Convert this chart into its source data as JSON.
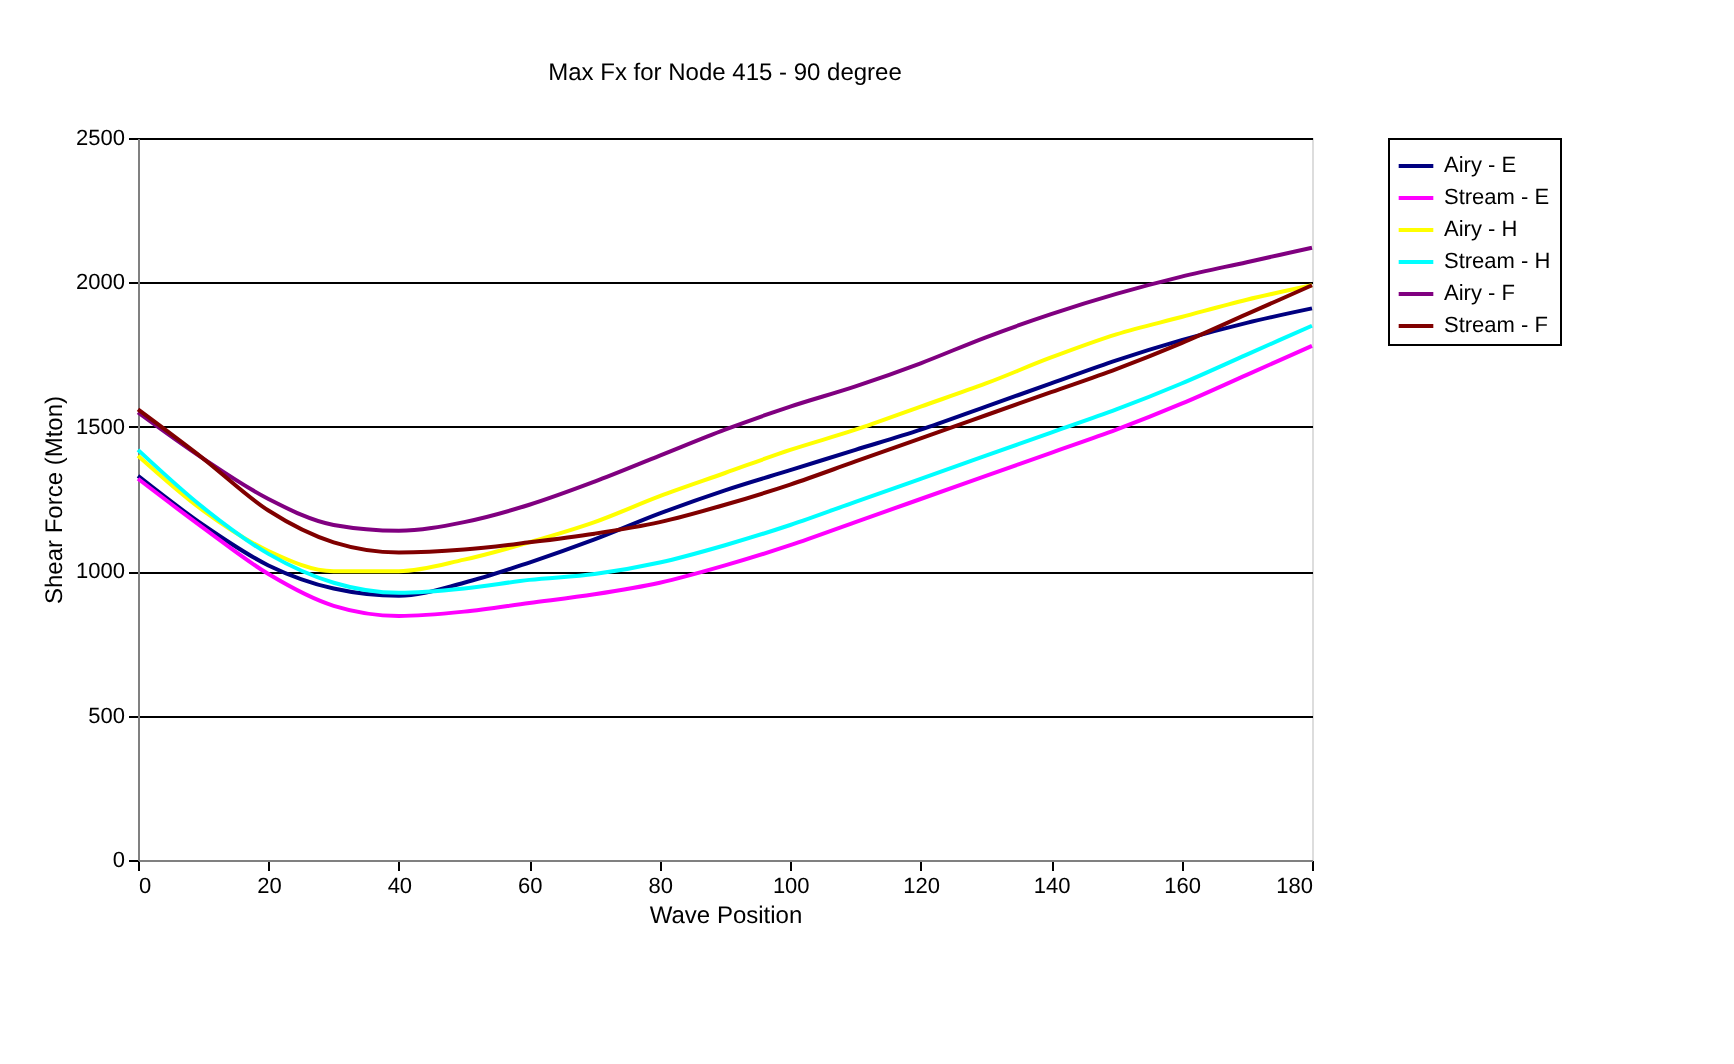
{
  "chart_data": {
    "type": "line",
    "title": "Max Fx for Node 415 - 90 degree",
    "xlabel": "Wave Position",
    "ylabel": "Shear Force (Mton)",
    "x": [
      0,
      10,
      20,
      30,
      40,
      50,
      60,
      70,
      80,
      90,
      100,
      110,
      120,
      130,
      140,
      150,
      160,
      170,
      180
    ],
    "xlim": [
      0,
      180
    ],
    "xticks": [
      0,
      20,
      40,
      60,
      80,
      100,
      120,
      140,
      160,
      180
    ],
    "ylim": [
      0,
      2500
    ],
    "yticks": [
      0,
      500,
      1000,
      1500,
      2000,
      2500
    ],
    "grid": "y",
    "legend": "right",
    "marker": "none",
    "line_style": "solid",
    "series": [
      {
        "name": "Airy - E",
        "color": "#000080",
        "values": [
          1330,
          1160,
          1020,
          940,
          915,
          960,
          1030,
          1110,
          1200,
          1280,
          1350,
          1420,
          1490,
          1570,
          1650,
          1730,
          1800,
          1860,
          1910
        ]
      },
      {
        "name": "Stream - E",
        "color": "#ff00ff",
        "values": [
          1320,
          1150,
          990,
          880,
          845,
          860,
          890,
          920,
          960,
          1020,
          1090,
          1170,
          1250,
          1330,
          1410,
          1490,
          1580,
          1680,
          1780
        ]
      },
      {
        "name": "Airy - H",
        "color": "#ffff00",
        "values": [
          1400,
          1210,
          1070,
          1000,
          1000,
          1040,
          1100,
          1170,
          1260,
          1340,
          1420,
          1490,
          1570,
          1650,
          1740,
          1820,
          1880,
          1940,
          1990
        ]
      },
      {
        "name": "Stream - H",
        "color": "#00ffff",
        "values": [
          1420,
          1220,
          1060,
          960,
          925,
          940,
          970,
          990,
          1030,
          1090,
          1160,
          1240,
          1320,
          1400,
          1480,
          1560,
          1650,
          1750,
          1850
        ]
      },
      {
        "name": "Airy - F",
        "color": "#800080",
        "values": [
          1550,
          1390,
          1250,
          1160,
          1140,
          1170,
          1230,
          1310,
          1400,
          1490,
          1570,
          1640,
          1720,
          1810,
          1890,
          1960,
          2020,
          2070,
          2120
        ]
      },
      {
        "name": "Stream - F",
        "color": "#800000",
        "values": [
          1560,
          1390,
          1210,
          1100,
          1065,
          1075,
          1100,
          1130,
          1170,
          1230,
          1300,
          1380,
          1460,
          1540,
          1620,
          1700,
          1790,
          1890,
          1990
        ]
      }
    ]
  }
}
